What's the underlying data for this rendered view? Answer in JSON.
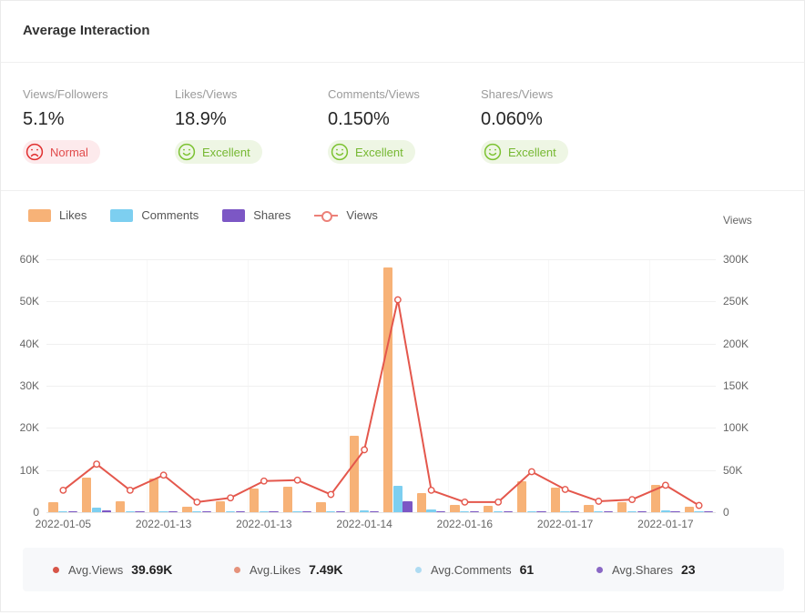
{
  "header": {
    "title": "Average Interaction"
  },
  "metrics": [
    {
      "label": "Views/Followers",
      "value": "5.1%",
      "status": "Normal",
      "mood": "sad"
    },
    {
      "label": "Likes/Views",
      "value": "18.9%",
      "status": "Excellent",
      "mood": "happy"
    },
    {
      "label": "Comments/Views",
      "value": "0.150%",
      "status": "Excellent",
      "mood": "happy"
    },
    {
      "label": "Shares/Views",
      "value": "0.060%",
      "status": "Excellent",
      "mood": "happy"
    }
  ],
  "legend": {
    "items": [
      {
        "label": "Likes",
        "type": "bar",
        "color": "#f7b277"
      },
      {
        "label": "Comments",
        "type": "bar",
        "color": "#7dcff0"
      },
      {
        "label": "Shares",
        "type": "bar",
        "color": "#7c57c5"
      },
      {
        "label": "Views",
        "type": "line",
        "color": "#e4574c"
      }
    ]
  },
  "chart_data": {
    "type": "bar+line",
    "title": "Average Interaction",
    "categories": [
      "2022-01-05",
      "",
      "",
      "2022-01-13",
      "",
      "",
      "2022-01-13",
      "",
      "",
      "2022-01-14",
      "",
      "",
      "2022-01-16",
      "",
      "",
      "2022-01-17",
      "",
      "",
      "2022-01-17",
      ""
    ],
    "series": [
      {
        "name": "Likes",
        "type": "bar",
        "axis": "left",
        "color": "#f7b277",
        "values_k": [
          2.4,
          8.2,
          2.6,
          8.0,
          1.3,
          2.5,
          5.6,
          6.0,
          2.4,
          18.1,
          58.1,
          4.6,
          1.7,
          1.5,
          7.3,
          5.8,
          1.7,
          2.4,
          6.5,
          1.3
        ]
      },
      {
        "name": "Comments",
        "type": "bar",
        "axis": "left",
        "color": "#7dcff0",
        "values_k": [
          0.1,
          1.1,
          0.15,
          0.3,
          0.1,
          0.15,
          0.3,
          0.25,
          0.3,
          0.4,
          6.2,
          0.6,
          0.15,
          0.1,
          0.3,
          0.3,
          0.1,
          0.3,
          0.45,
          0.15
        ]
      },
      {
        "name": "Shares",
        "type": "bar",
        "axis": "left",
        "color": "#7c57c5",
        "values_k": [
          0.05,
          0.35,
          0.1,
          0.15,
          0.05,
          0.1,
          0.15,
          0.1,
          0.1,
          0.3,
          2.6,
          0.2,
          0.05,
          0.05,
          0.1,
          0.1,
          0.05,
          0.1,
          0.15,
          0.05
        ]
      },
      {
        "name": "Views",
        "type": "line",
        "axis": "right",
        "color": "#e4574c",
        "values_k": [
          26,
          57,
          26,
          44,
          12,
          17,
          37,
          38,
          21,
          74,
          252,
          26,
          12,
          12,
          48,
          27,
          13,
          15,
          32,
          8
        ]
      }
    ],
    "left_axis": {
      "ticks": [
        "0",
        "10K",
        "20K",
        "30K",
        "40K",
        "50K",
        "60K"
      ],
      "max_k": 60
    },
    "right_axis": {
      "title": "Views",
      "ticks": [
        "0",
        "50K",
        "100K",
        "150K",
        "200K",
        "250K",
        "300K"
      ],
      "max_k": 300
    },
    "grid": "horizontal",
    "legend_position": "top-left"
  },
  "summary": {
    "items": [
      {
        "label": "Avg.Views",
        "value": "39.69K",
        "dot_color": "#d75548"
      },
      {
        "label": "Avg.Likes",
        "value": "7.49K",
        "dot_color": "#e5927b"
      },
      {
        "label": "Avg.Comments",
        "value": "61",
        "dot_color": "#aedbf2"
      },
      {
        "label": "Avg.Shares",
        "value": "23",
        "dot_color": "#8a68c5"
      }
    ]
  },
  "icons": {
    "sad_face": "sad-face-icon",
    "happy_face": "happy-face-icon"
  },
  "colors": {
    "accent_orange": "#f7b277",
    "accent_blue": "#7dcff0",
    "accent_purple": "#7c57c5",
    "accent_red_line": "#e4574c",
    "badge_bad_bg": "#fdeaec",
    "badge_bad_text": "#e14b4b",
    "badge_good_bg": "#eef6e4",
    "badge_good_text": "#76b832"
  }
}
